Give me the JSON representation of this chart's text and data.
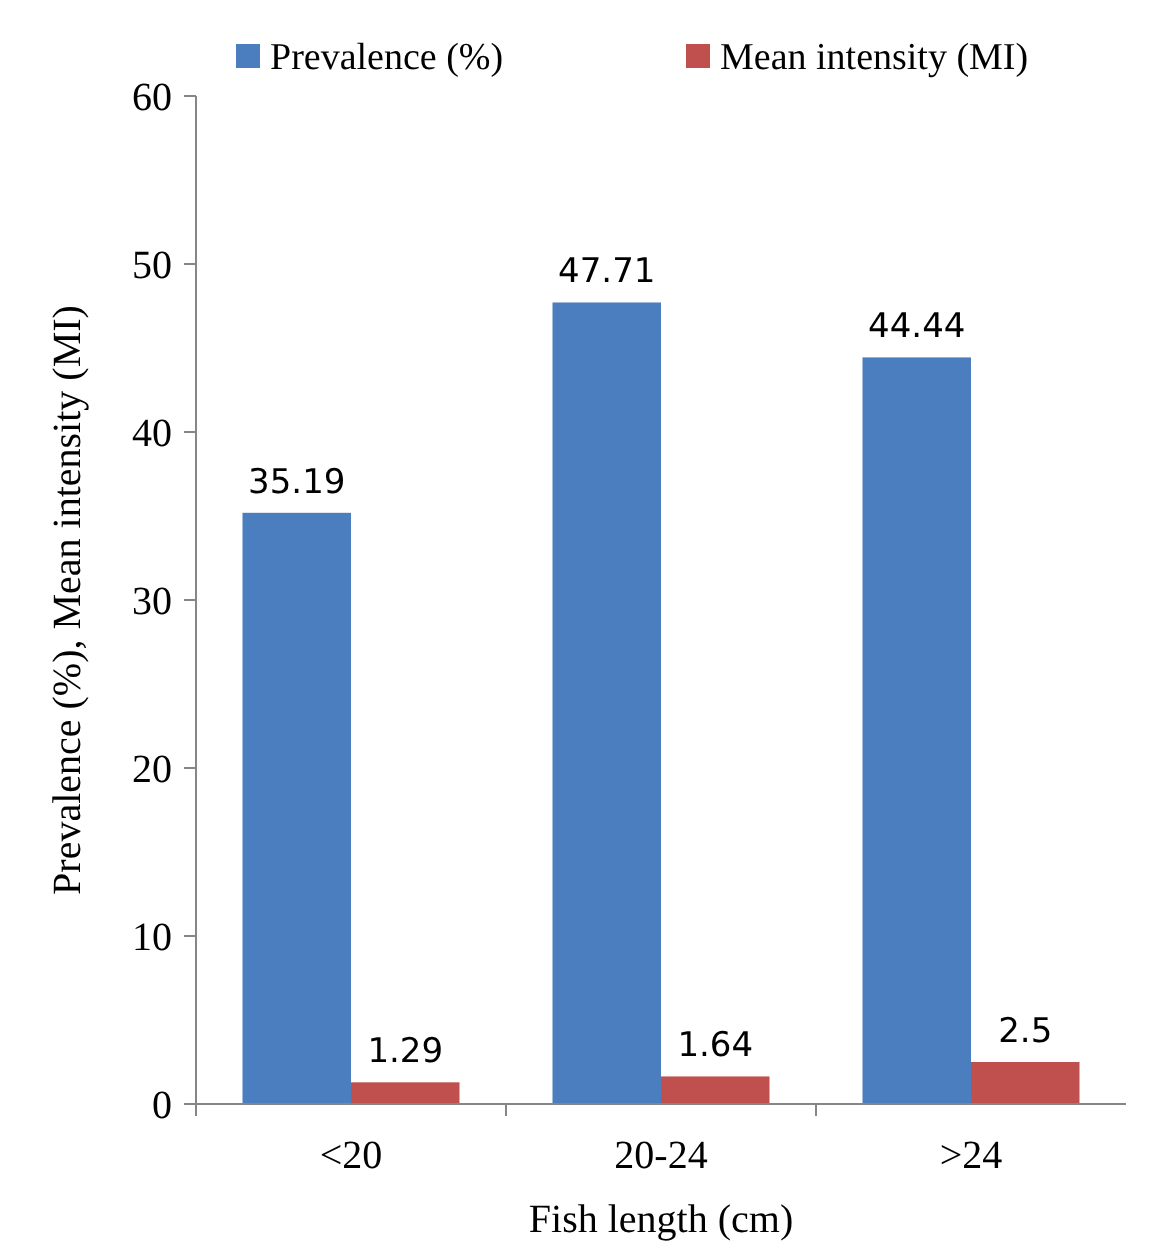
{
  "chart_data": {
    "type": "bar",
    "xlabel": "Fish length (cm)",
    "ylabel": "Prevalence (%), Mean intensity (MI)",
    "categories": [
      "<20",
      "20-24",
      ">24"
    ],
    "series": [
      {
        "name": "Prevalence (%)",
        "color": "#4a7ebf",
        "values": [
          35.19,
          47.71,
          44.44
        ]
      },
      {
        "name": "Mean intensity (MI)",
        "color": "#c0504d",
        "values": [
          1.29,
          1.64,
          2.5
        ]
      }
    ],
    "ylim": [
      0,
      60
    ],
    "yticks": [
      0,
      10,
      20,
      30,
      40,
      50,
      60
    ],
    "data_labels": true,
    "legend": "top",
    "grid": false
  }
}
